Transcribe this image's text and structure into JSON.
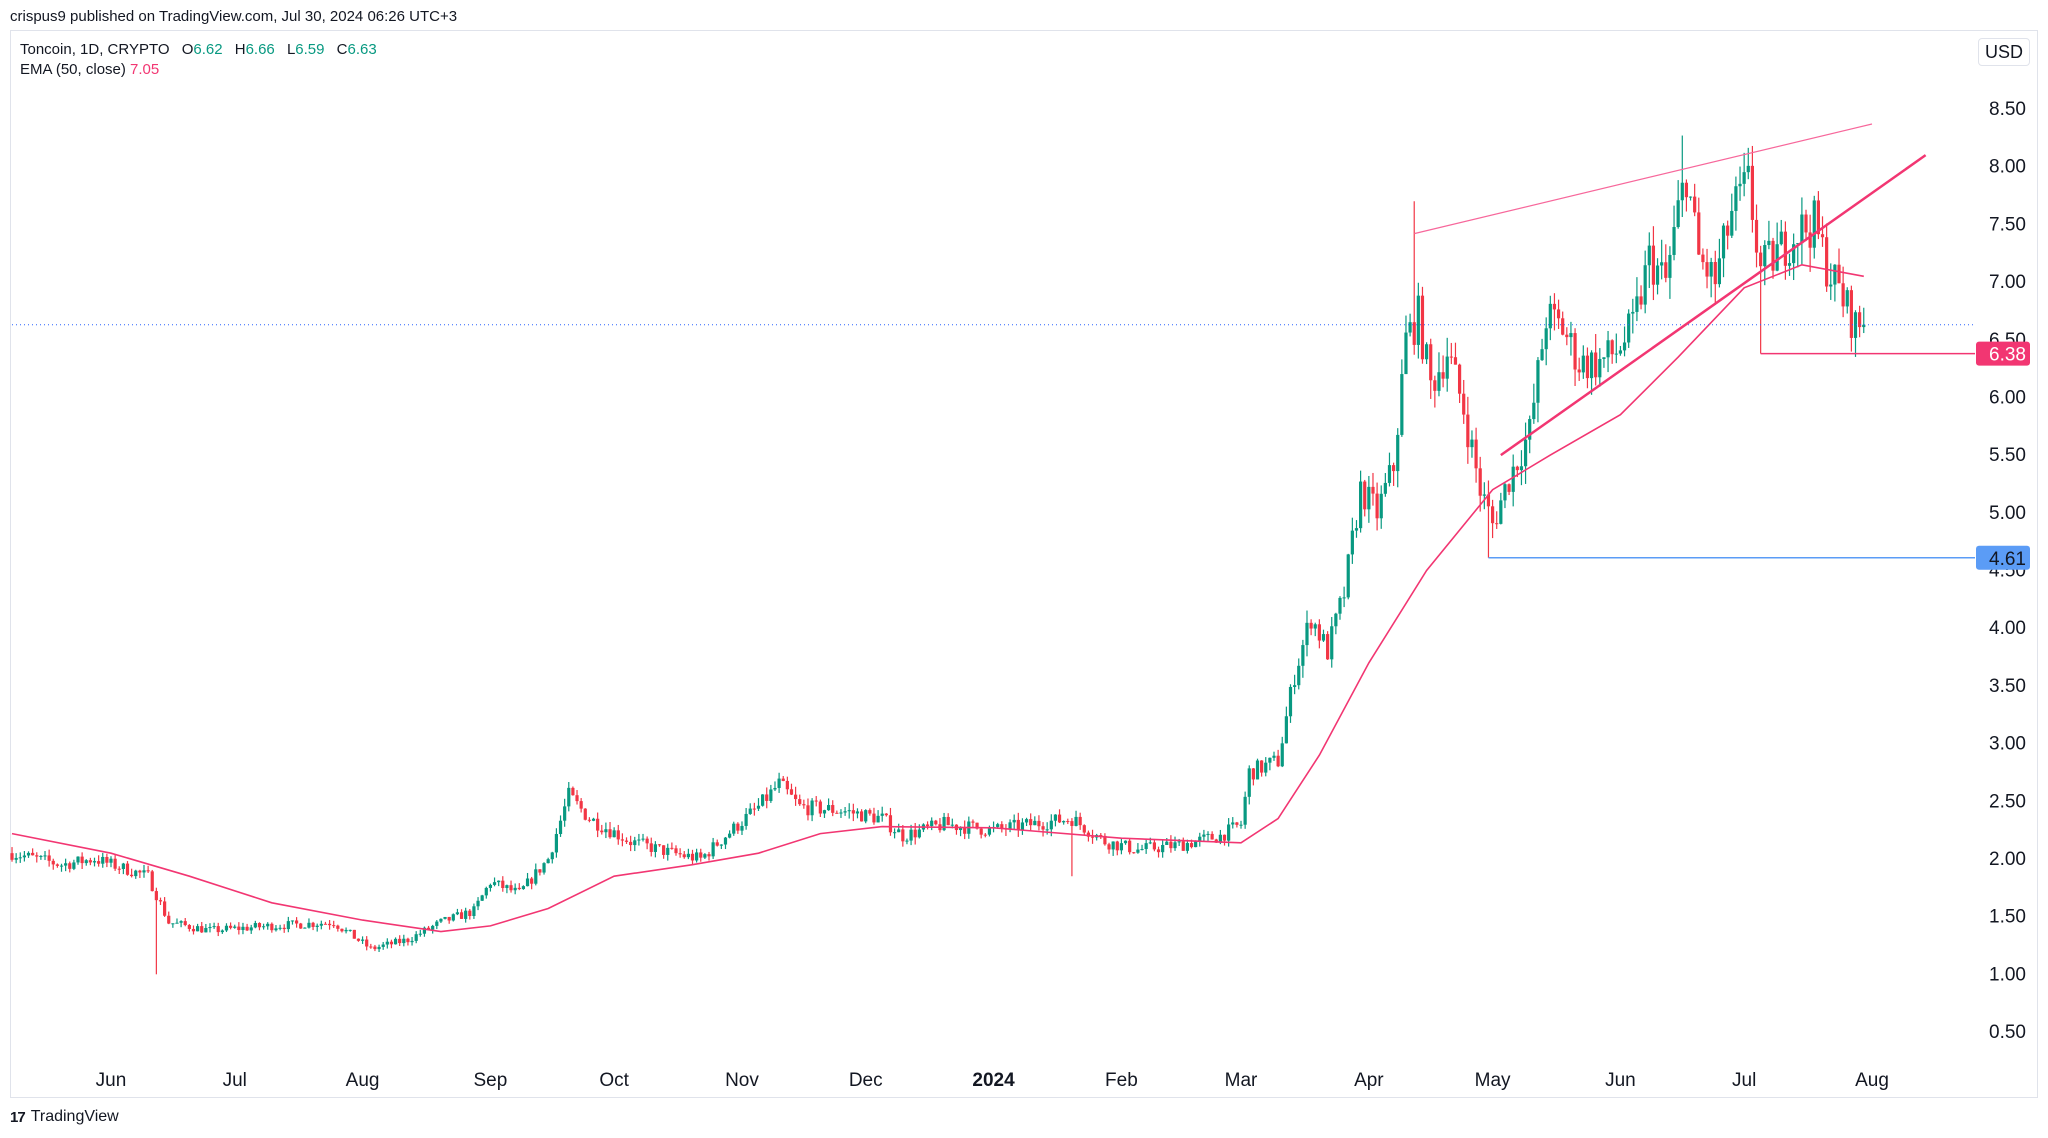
{
  "header": {
    "publisher_line": "crispus9 published on TradingView.com, Jul 30, 2024 06:26 UTC+3"
  },
  "legend": {
    "symbol": "Toncoin, 1D, CRYPTO",
    "o_label": "O",
    "o_value": "6.62",
    "h_label": "H",
    "h_value": "6.66",
    "l_label": "L",
    "l_value": "6.59",
    "c_label": "C",
    "c_value": "6.63",
    "ema_label": "EMA (50, close)",
    "ema_value": "7.05"
  },
  "currency_button": "USD",
  "footer": {
    "brand": "TradingView",
    "logo_glyph": "17"
  },
  "chart_data": {
    "type": "candlestick",
    "title": "Toncoin, 1D, CRYPTO",
    "ylim": [
      0.25,
      8.85
    ],
    "y_ticks": [
      "0.50",
      "1.00",
      "1.50",
      "2.00",
      "2.50",
      "3.00",
      "3.50",
      "4.00",
      "4.50",
      "5.00",
      "5.50",
      "6.00",
      "6.50",
      "7.00",
      "7.50",
      "8.00",
      "8.50"
    ],
    "x_ticks": [
      {
        "label": "Jun",
        "date": "2023-06-01"
      },
      {
        "label": "Jul",
        "date": "2023-07-01"
      },
      {
        "label": "Aug",
        "date": "2023-08-01"
      },
      {
        "label": "Sep",
        "date": "2023-09-01"
      },
      {
        "label": "Oct",
        "date": "2023-10-01"
      },
      {
        "label": "Nov",
        "date": "2023-11-01"
      },
      {
        "label": "Dec",
        "date": "2023-12-01"
      },
      {
        "label": "2024",
        "date": "2024-01-01",
        "bold": true
      },
      {
        "label": "Feb",
        "date": "2024-02-01"
      },
      {
        "label": "Mar",
        "date": "2024-03-01"
      },
      {
        "label": "Apr",
        "date": "2024-04-01"
      },
      {
        "label": "May",
        "date": "2024-05-01"
      },
      {
        "label": "Jun",
        "date": "2024-06-01"
      },
      {
        "label": "Jul",
        "date": "2024-07-01"
      },
      {
        "label": "Aug",
        "date": "2024-08-01"
      }
    ],
    "x_range": [
      "2023-05-08",
      "2024-09-15"
    ],
    "price_anchors": [
      [
        "2023-05-08",
        2.05
      ],
      [
        "2023-05-20",
        1.95
      ],
      [
        "2023-05-28",
        2.0
      ],
      [
        "2023-06-10",
        1.85
      ],
      [
        "2023-06-15",
        1.45
      ],
      [
        "2023-06-25",
        1.38
      ],
      [
        "2023-07-10",
        1.42
      ],
      [
        "2023-07-25",
        1.45
      ],
      [
        "2023-08-03",
        1.22
      ],
      [
        "2023-08-12",
        1.3
      ],
      [
        "2023-08-20",
        1.45
      ],
      [
        "2023-08-28",
        1.55
      ],
      [
        "2023-09-01",
        1.8
      ],
      [
        "2023-09-08",
        1.7
      ],
      [
        "2023-09-15",
        2.0
      ],
      [
        "2023-09-20",
        2.55
      ],
      [
        "2023-09-25",
        2.35
      ],
      [
        "2023-10-05",
        2.15
      ],
      [
        "2023-10-15",
        2.05
      ],
      [
        "2023-10-22",
        2.0
      ],
      [
        "2023-10-28",
        2.2
      ],
      [
        "2023-11-05",
        2.45
      ],
      [
        "2023-11-10",
        2.65
      ],
      [
        "2023-11-15",
        2.45
      ],
      [
        "2023-11-25",
        2.42
      ],
      [
        "2023-12-05",
        2.35
      ],
      [
        "2023-12-10",
        2.2
      ],
      [
        "2023-12-20",
        2.3
      ],
      [
        "2024-01-01",
        2.25
      ],
      [
        "2024-01-10",
        2.3
      ],
      [
        "2024-01-20",
        2.35
      ],
      [
        "2024-01-28",
        2.15
      ],
      [
        "2024-02-05",
        2.08
      ],
      [
        "2024-02-15",
        2.12
      ],
      [
        "2024-02-25",
        2.2
      ],
      [
        "2024-03-01",
        2.3
      ],
      [
        "2024-03-03",
        2.75
      ],
      [
        "2024-03-10",
        2.85
      ],
      [
        "2024-03-14",
        3.6
      ],
      [
        "2024-03-18",
        4.1
      ],
      [
        "2024-03-22",
        3.8
      ],
      [
        "2024-03-26",
        4.3
      ],
      [
        "2024-03-30",
        5.2
      ],
      [
        "2024-04-03",
        5.0
      ],
      [
        "2024-04-07",
        5.4
      ],
      [
        "2024-04-10",
        6.5
      ],
      [
        "2024-04-13",
        6.7
      ],
      [
        "2024-04-16",
        6.1
      ],
      [
        "2024-04-20",
        6.4
      ],
      [
        "2024-04-24",
        5.9
      ],
      [
        "2024-04-28",
        5.2
      ],
      [
        "2024-05-01",
        4.9
      ],
      [
        "2024-05-05",
        5.3
      ],
      [
        "2024-05-10",
        5.7
      ],
      [
        "2024-05-14",
        6.7
      ],
      [
        "2024-05-18",
        6.6
      ],
      [
        "2024-05-22",
        6.3
      ],
      [
        "2024-05-27",
        6.3
      ],
      [
        "2024-05-31",
        6.4
      ],
      [
        "2024-06-04",
        6.6
      ],
      [
        "2024-06-08",
        7.2
      ],
      [
        "2024-06-12",
        7.0
      ],
      [
        "2024-06-15",
        7.6
      ],
      [
        "2024-06-17",
        7.95
      ],
      [
        "2024-06-20",
        7.2
      ],
      [
        "2024-06-24",
        7.0
      ],
      [
        "2024-06-28",
        7.6
      ],
      [
        "2024-07-02",
        7.85
      ],
      [
        "2024-07-05",
        7.1
      ],
      [
        "2024-07-09",
        7.25
      ],
      [
        "2024-07-14",
        7.45
      ],
      [
        "2024-07-18",
        7.5
      ],
      [
        "2024-07-21",
        7.15
      ],
      [
        "2024-07-25",
        6.85
      ],
      [
        "2024-07-28",
        6.62
      ],
      [
        "2024-07-30",
        6.63
      ]
    ],
    "spikes": [
      {
        "date": "2023-06-12",
        "low": 1.0
      },
      {
        "date": "2024-01-20",
        "low": 1.85
      },
      {
        "date": "2024-04-30",
        "low": 4.61
      },
      {
        "date": "2024-07-05",
        "low": 6.38
      },
      {
        "date": "2024-04-12",
        "high": 7.7
      },
      {
        "date": "2024-06-16",
        "high": 8.27
      },
      {
        "date": "2024-07-01",
        "high": 8.12
      }
    ],
    "ema": [
      [
        "2023-05-08",
        2.22
      ],
      [
        "2023-06-01",
        2.05
      ],
      [
        "2023-06-20",
        1.85
      ],
      [
        "2023-07-10",
        1.62
      ],
      [
        "2023-08-01",
        1.47
      ],
      [
        "2023-08-20",
        1.37
      ],
      [
        "2023-09-01",
        1.42
      ],
      [
        "2023-09-15",
        1.57
      ],
      [
        "2023-10-01",
        1.85
      ],
      [
        "2023-10-20",
        1.95
      ],
      [
        "2023-11-05",
        2.05
      ],
      [
        "2023-11-20",
        2.22
      ],
      [
        "2023-12-05",
        2.28
      ],
      [
        "2024-01-01",
        2.27
      ],
      [
        "2024-02-01",
        2.18
      ],
      [
        "2024-03-01",
        2.14
      ],
      [
        "2024-03-10",
        2.35
      ],
      [
        "2024-03-20",
        2.9
      ],
      [
        "2024-04-01",
        3.7
      ],
      [
        "2024-04-15",
        4.5
      ],
      [
        "2024-05-01",
        5.2
      ],
      [
        "2024-05-15",
        5.5
      ],
      [
        "2024-06-01",
        5.85
      ],
      [
        "2024-06-15",
        6.35
      ],
      [
        "2024-07-01",
        6.95
      ],
      [
        "2024-07-15",
        7.15
      ],
      [
        "2024-07-30",
        7.05
      ]
    ],
    "current_price_line": 6.63,
    "trend_lines": [
      {
        "from": [
          "2024-04-12",
          7.42
        ],
        "to": [
          "2024-08-01",
          8.37
        ],
        "color": "#f7679b",
        "width": 1.2
      },
      {
        "from": [
          "2024-05-03",
          5.5
        ],
        "to": [
          "2024-08-14",
          8.1
        ],
        "color": "#f23672",
        "width": 2.5
      }
    ],
    "horizontal_levels": [
      {
        "price": 6.38,
        "label": "6.38",
        "start": "2024-07-05",
        "color": "#f23672",
        "text_color": "#ffffff"
      },
      {
        "price": 4.61,
        "label": "4.61",
        "start": "2024-04-30",
        "color": "#5b9cf6",
        "text_color": "#131722"
      }
    ],
    "colors": {
      "up": "#089981",
      "down": "#f23645",
      "ema": "#f23672",
      "grid": "#ffffff",
      "axis_text": "#131722",
      "price_line": "#2962ff"
    }
  }
}
